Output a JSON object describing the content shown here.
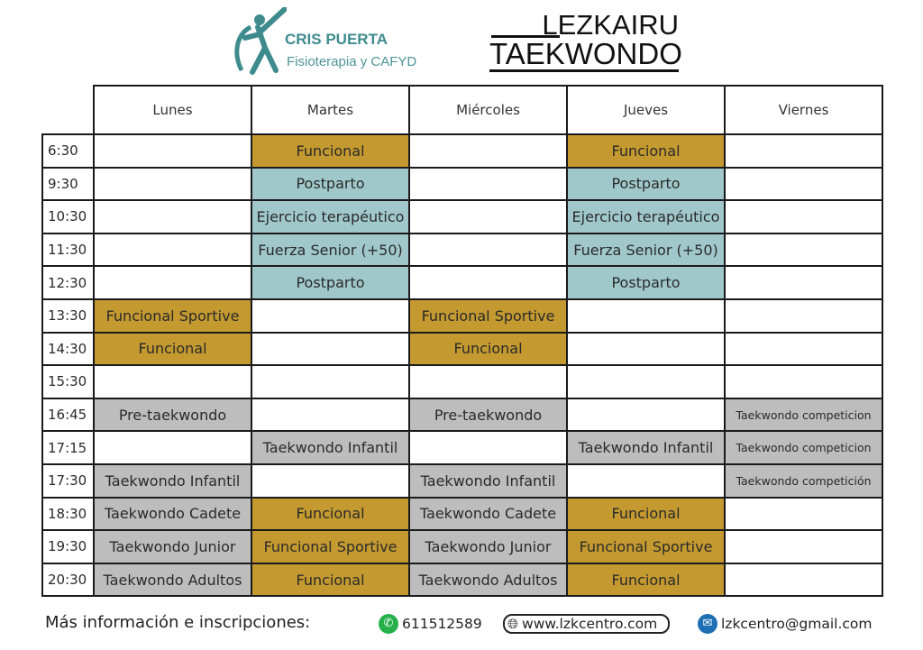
{
  "logos": {
    "left": {
      "brand": "CRIS PUERTA",
      "subtitle": "Fisioterapia y CAFYD"
    },
    "right": {
      "line1": "LEZKAIRU",
      "line2": "TAEKWONDO"
    }
  },
  "colors": {
    "funcional": "#c49a30",
    "fisio": "#a0c8ca",
    "taekwondo": "#bdbdbd"
  },
  "schedule": {
    "days": [
      "Lunes",
      "Martes",
      "Miércoles",
      "Jueves",
      "Viernes"
    ],
    "rows": [
      {
        "time": "6:30",
        "cells": [
          {
            "text": "",
            "type": ""
          },
          {
            "text": "Funcional",
            "type": "g"
          },
          {
            "text": "",
            "type": ""
          },
          {
            "text": "Funcional",
            "type": "g"
          },
          {
            "text": "",
            "type": ""
          }
        ]
      },
      {
        "time": "9:30",
        "cells": [
          {
            "text": "",
            "type": ""
          },
          {
            "text": "Postparto",
            "type": "t"
          },
          {
            "text": "",
            "type": ""
          },
          {
            "text": "Postparto",
            "type": "t"
          },
          {
            "text": "",
            "type": ""
          }
        ]
      },
      {
        "time": "10:30",
        "cells": [
          {
            "text": "",
            "type": ""
          },
          {
            "text": "Ejercicio terapéutico",
            "type": "t"
          },
          {
            "text": "",
            "type": ""
          },
          {
            "text": "Ejercicio terapéutico",
            "type": "t"
          },
          {
            "text": "",
            "type": ""
          }
        ]
      },
      {
        "time": "11:30",
        "cells": [
          {
            "text": "",
            "type": ""
          },
          {
            "text": "Fuerza Senior (+50)",
            "type": "t"
          },
          {
            "text": "",
            "type": ""
          },
          {
            "text": "Fuerza Senior (+50)",
            "type": "t"
          },
          {
            "text": "",
            "type": ""
          }
        ]
      },
      {
        "time": "12:30",
        "cells": [
          {
            "text": "",
            "type": ""
          },
          {
            "text": "Postparto",
            "type": "t"
          },
          {
            "text": "",
            "type": ""
          },
          {
            "text": "Postparto",
            "type": "t"
          },
          {
            "text": "",
            "type": ""
          }
        ]
      },
      {
        "time": "13:30",
        "cells": [
          {
            "text": "Funcional Sportive",
            "type": "g"
          },
          {
            "text": "",
            "type": ""
          },
          {
            "text": "Funcional Sportive",
            "type": "g"
          },
          {
            "text": "",
            "type": ""
          },
          {
            "text": "",
            "type": ""
          }
        ]
      },
      {
        "time": "14:30",
        "cells": [
          {
            "text": "Funcional",
            "type": "g"
          },
          {
            "text": "",
            "type": ""
          },
          {
            "text": "Funcional",
            "type": "g"
          },
          {
            "text": "",
            "type": ""
          },
          {
            "text": "",
            "type": ""
          }
        ]
      },
      {
        "time": "15:30",
        "cells": [
          {
            "text": "",
            "type": ""
          },
          {
            "text": "",
            "type": ""
          },
          {
            "text": "",
            "type": ""
          },
          {
            "text": "",
            "type": ""
          },
          {
            "text": "",
            "type": ""
          }
        ]
      },
      {
        "time": "16:45",
        "cells": [
          {
            "text": "Pre-taekwondo",
            "type": "y"
          },
          {
            "text": "",
            "type": ""
          },
          {
            "text": "Pre-taekwondo",
            "type": "y"
          },
          {
            "text": "",
            "type": ""
          },
          {
            "text": "Taekwondo competicion",
            "type": "y small"
          }
        ]
      },
      {
        "time": "17:15",
        "cells": [
          {
            "text": "",
            "type": ""
          },
          {
            "text": "Taekwondo Infantil",
            "type": "y"
          },
          {
            "text": "",
            "type": ""
          },
          {
            "text": "Taekwondo Infantil",
            "type": "y"
          },
          {
            "text": "Taekwondo competicion",
            "type": "y small"
          }
        ]
      },
      {
        "time": "17:30",
        "cells": [
          {
            "text": "Taekwondo Infantil",
            "type": "y"
          },
          {
            "text": "",
            "type": ""
          },
          {
            "text": "Taekwondo Infantil",
            "type": "y"
          },
          {
            "text": "",
            "type": ""
          },
          {
            "text": "Taekwondo competición",
            "type": "y small"
          }
        ]
      },
      {
        "time": "18:30",
        "cells": [
          {
            "text": "Taekwondo Cadete",
            "type": "y"
          },
          {
            "text": "Funcional",
            "type": "g"
          },
          {
            "text": "Taekwondo Cadete",
            "type": "y"
          },
          {
            "text": "Funcional",
            "type": "g"
          },
          {
            "text": "",
            "type": ""
          }
        ]
      },
      {
        "time": "19:30",
        "cells": [
          {
            "text": "Taekwondo Junior",
            "type": "y"
          },
          {
            "text": "Funcional Sportive",
            "type": "g"
          },
          {
            "text": "Taekwondo Junior",
            "type": "y"
          },
          {
            "text": "Funcional Sportive",
            "type": "g"
          },
          {
            "text": "",
            "type": ""
          }
        ]
      },
      {
        "time": "20:30",
        "cells": [
          {
            "text": "Taekwondo Adultos",
            "type": "y"
          },
          {
            "text": "Funcional",
            "type": "g"
          },
          {
            "text": "Taekwondo Adultos",
            "type": "y"
          },
          {
            "text": "Funcional",
            "type": "g"
          },
          {
            "text": "",
            "type": ""
          }
        ]
      }
    ]
  },
  "footer": {
    "label": "Más información e inscripciones:",
    "phone": "611512589",
    "website": "www.lzkcentro.com",
    "email": "lzkcentro@gmail.com",
    "icons": {
      "phone": "whatsapp-icon",
      "website": "globe-icon",
      "email": "envelope-icon"
    }
  }
}
